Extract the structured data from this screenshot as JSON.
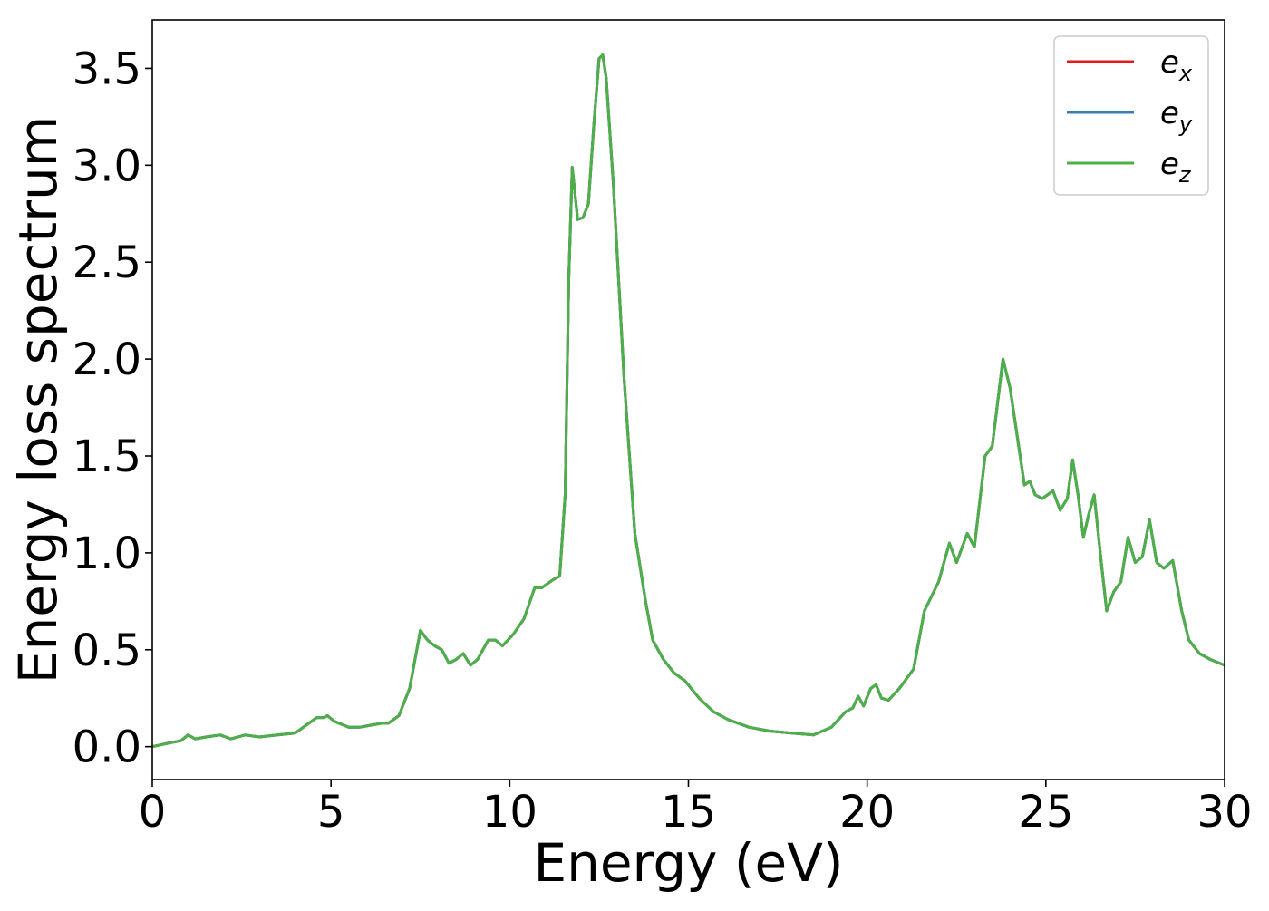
{
  "chart_data": {
    "type": "line",
    "title": "",
    "xlabel": "Energy (eV)",
    "ylabel": "Energy loss spectrum",
    "xlim": [
      0,
      30
    ],
    "ylim": [
      -0.17,
      3.75
    ],
    "xticks": [
      0,
      5,
      10,
      15,
      20,
      25,
      30
    ],
    "yticks": [
      0.0,
      0.5,
      1.0,
      1.5,
      2.0,
      2.5,
      3.0,
      3.5
    ],
    "xtick_labels": [
      "0",
      "5",
      "10",
      "15",
      "20",
      "25",
      "30"
    ],
    "ytick_labels": [
      "0.0",
      "0.5",
      "1.0",
      "1.5",
      "2.0",
      "2.5",
      "3.0",
      "3.5"
    ],
    "grid": false,
    "legend_position": "top-right",
    "x": [
      0.0,
      0.5,
      0.8,
      1.0,
      1.2,
      1.5,
      1.9,
      2.2,
      2.6,
      3.0,
      3.5,
      4.0,
      4.3,
      4.6,
      4.8,
      4.9,
      5.1,
      5.5,
      5.8,
      6.1,
      6.4,
      6.6,
      6.9,
      7.2,
      7.5,
      7.7,
      7.9,
      8.1,
      8.3,
      8.5,
      8.7,
      8.9,
      9.1,
      9.4,
      9.6,
      9.8,
      10.1,
      10.4,
      10.7,
      10.9,
      11.2,
      11.4,
      11.55,
      11.65,
      11.75,
      11.9,
      12.05,
      12.2,
      12.35,
      12.5,
      12.6,
      12.7,
      12.9,
      13.2,
      13.5,
      13.8,
      14.0,
      14.3,
      14.6,
      14.9,
      15.3,
      15.7,
      16.1,
      16.7,
      17.3,
      17.9,
      18.5,
      19.0,
      19.4,
      19.6,
      19.75,
      19.9,
      20.1,
      20.25,
      20.4,
      20.6,
      20.9,
      21.3,
      21.6,
      22.0,
      22.3,
      22.5,
      22.8,
      23.0,
      23.3,
      23.5,
      23.8,
      24.0,
      24.2,
      24.4,
      24.55,
      24.7,
      24.9,
      25.2,
      25.4,
      25.6,
      25.75,
      25.9,
      26.05,
      26.2,
      26.35,
      26.55,
      26.7,
      26.9,
      27.1,
      27.3,
      27.5,
      27.7,
      27.9,
      28.1,
      28.3,
      28.55,
      28.8,
      29.0,
      29.3,
      29.6,
      30.0
    ],
    "series": [
      {
        "name": "e_x",
        "label_base": "e",
        "label_sub": "x",
        "color": "#e41a1c",
        "values": [
          0.0,
          0.02,
          0.03,
          0.06,
          0.04,
          0.05,
          0.06,
          0.04,
          0.06,
          0.05,
          0.06,
          0.07,
          0.11,
          0.15,
          0.15,
          0.16,
          0.13,
          0.1,
          0.1,
          0.11,
          0.12,
          0.12,
          0.16,
          0.3,
          0.6,
          0.55,
          0.52,
          0.5,
          0.43,
          0.45,
          0.48,
          0.42,
          0.45,
          0.55,
          0.55,
          0.52,
          0.58,
          0.66,
          0.82,
          0.82,
          0.86,
          0.88,
          1.3,
          2.4,
          2.99,
          2.72,
          2.73,
          2.8,
          3.2,
          3.55,
          3.57,
          3.45,
          2.9,
          1.9,
          1.1,
          0.75,
          0.55,
          0.45,
          0.38,
          0.34,
          0.25,
          0.18,
          0.14,
          0.1,
          0.08,
          0.07,
          0.06,
          0.1,
          0.18,
          0.2,
          0.26,
          0.21,
          0.3,
          0.32,
          0.25,
          0.24,
          0.3,
          0.4,
          0.7,
          0.85,
          1.05,
          0.95,
          1.1,
          1.03,
          1.5,
          1.55,
          2.0,
          1.85,
          1.6,
          1.35,
          1.37,
          1.3,
          1.28,
          1.32,
          1.22,
          1.28,
          1.48,
          1.3,
          1.08,
          1.2,
          1.3,
          0.95,
          0.7,
          0.8,
          0.85,
          1.08,
          0.95,
          0.98,
          1.17,
          0.95,
          0.92,
          0.96,
          0.7,
          0.55,
          0.48,
          0.45,
          0.42
        ]
      },
      {
        "name": "e_y",
        "label_base": "e",
        "label_sub": "y",
        "color": "#377eb8",
        "values": [
          0.0,
          0.02,
          0.03,
          0.06,
          0.04,
          0.05,
          0.06,
          0.04,
          0.06,
          0.05,
          0.06,
          0.07,
          0.11,
          0.15,
          0.15,
          0.16,
          0.13,
          0.1,
          0.1,
          0.11,
          0.12,
          0.12,
          0.16,
          0.3,
          0.6,
          0.55,
          0.52,
          0.5,
          0.43,
          0.45,
          0.48,
          0.42,
          0.45,
          0.55,
          0.55,
          0.52,
          0.58,
          0.66,
          0.82,
          0.82,
          0.86,
          0.88,
          1.3,
          2.4,
          2.99,
          2.72,
          2.73,
          2.8,
          3.2,
          3.55,
          3.57,
          3.45,
          2.9,
          1.9,
          1.1,
          0.75,
          0.55,
          0.45,
          0.38,
          0.34,
          0.25,
          0.18,
          0.14,
          0.1,
          0.08,
          0.07,
          0.06,
          0.1,
          0.18,
          0.2,
          0.26,
          0.21,
          0.3,
          0.32,
          0.25,
          0.24,
          0.3,
          0.4,
          0.7,
          0.85,
          1.05,
          0.95,
          1.1,
          1.03,
          1.5,
          1.55,
          2.0,
          1.85,
          1.6,
          1.35,
          1.37,
          1.3,
          1.28,
          1.32,
          1.22,
          1.28,
          1.48,
          1.3,
          1.08,
          1.2,
          1.3,
          0.95,
          0.7,
          0.8,
          0.85,
          1.08,
          0.95,
          0.98,
          1.17,
          0.95,
          0.92,
          0.96,
          0.7,
          0.55,
          0.48,
          0.45,
          0.42
        ]
      },
      {
        "name": "e_z",
        "label_base": "e",
        "label_sub": "z",
        "color": "#4daf4a",
        "values": [
          0.0,
          0.02,
          0.03,
          0.06,
          0.04,
          0.05,
          0.06,
          0.04,
          0.06,
          0.05,
          0.06,
          0.07,
          0.11,
          0.15,
          0.15,
          0.16,
          0.13,
          0.1,
          0.1,
          0.11,
          0.12,
          0.12,
          0.16,
          0.3,
          0.6,
          0.55,
          0.52,
          0.5,
          0.43,
          0.45,
          0.48,
          0.42,
          0.45,
          0.55,
          0.55,
          0.52,
          0.58,
          0.66,
          0.82,
          0.82,
          0.86,
          0.88,
          1.3,
          2.4,
          2.99,
          2.72,
          2.73,
          2.8,
          3.2,
          3.55,
          3.57,
          3.45,
          2.9,
          1.9,
          1.1,
          0.75,
          0.55,
          0.45,
          0.38,
          0.34,
          0.25,
          0.18,
          0.14,
          0.1,
          0.08,
          0.07,
          0.06,
          0.1,
          0.18,
          0.2,
          0.26,
          0.21,
          0.3,
          0.32,
          0.25,
          0.24,
          0.3,
          0.4,
          0.7,
          0.85,
          1.05,
          0.95,
          1.1,
          1.03,
          1.5,
          1.55,
          2.0,
          1.85,
          1.6,
          1.35,
          1.37,
          1.3,
          1.28,
          1.32,
          1.22,
          1.28,
          1.48,
          1.3,
          1.08,
          1.2,
          1.3,
          0.95,
          0.7,
          0.8,
          0.85,
          1.08,
          0.95,
          0.98,
          1.17,
          0.95,
          0.92,
          0.96,
          0.7,
          0.55,
          0.48,
          0.45,
          0.42
        ]
      }
    ]
  }
}
